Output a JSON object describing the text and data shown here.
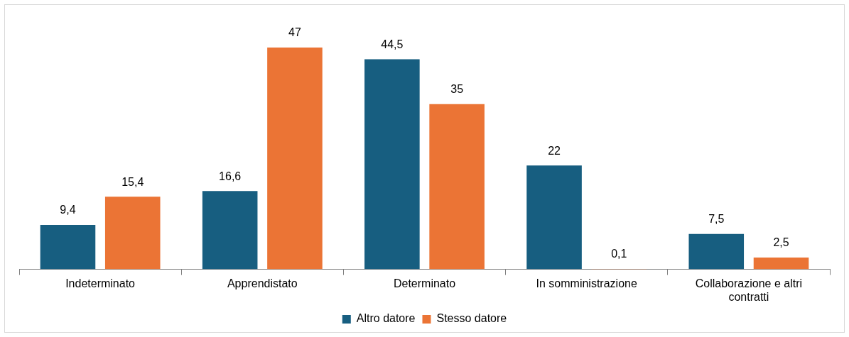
{
  "chart_data": {
    "type": "bar",
    "categories": [
      "Indeterminato",
      "Apprendistato",
      "Determinato",
      "In somministrazione",
      "Collaborazione e altri contratti"
    ],
    "series": [
      {
        "name": "Altro datore",
        "color": "#175e80",
        "values": [
          9.4,
          16.6,
          44.5,
          22,
          7.5
        ],
        "value_labels": [
          "9,4",
          "16,6",
          "44,5",
          "22",
          "7,5"
        ]
      },
      {
        "name": "Stesso datore",
        "color": "#eb7435",
        "values": [
          15.4,
          47,
          35,
          0.1,
          2.5
        ],
        "value_labels": [
          "15,4",
          "47",
          "35",
          "0,1",
          "2,5"
        ]
      }
    ],
    "tick_labels": "x",
    "grid": false,
    "legend": "bottom"
  }
}
